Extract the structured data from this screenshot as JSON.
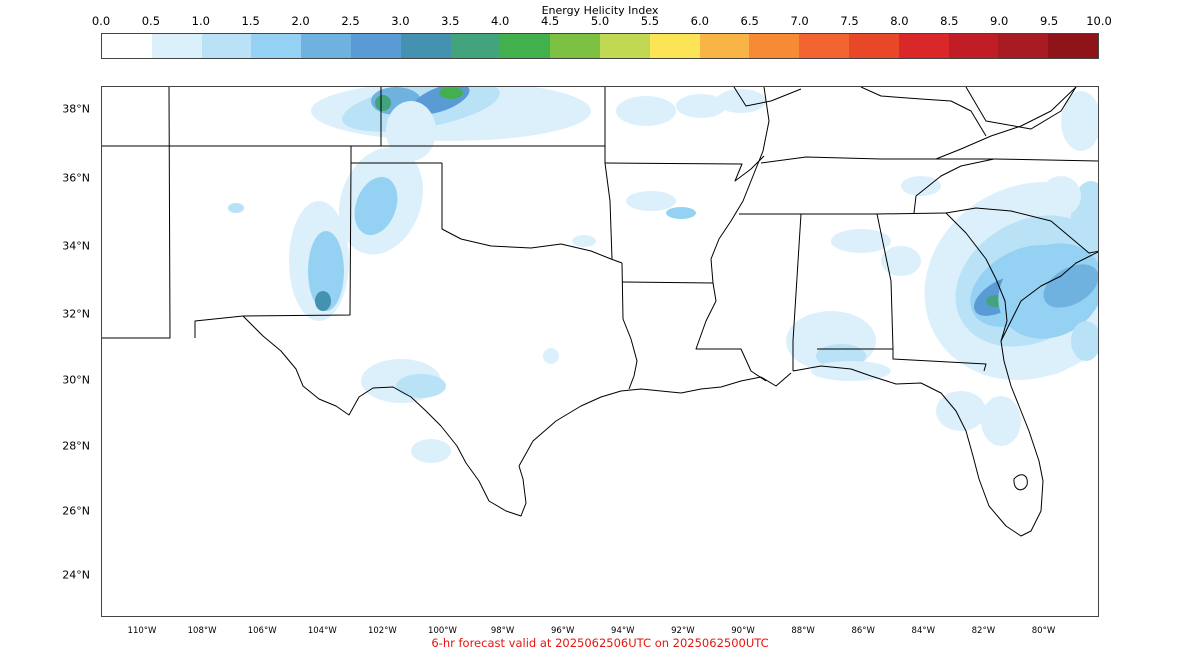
{
  "colorbar": {
    "title": "Energy Helicity Index",
    "ticks": [
      "0.0",
      "0.5",
      "1.0",
      "1.5",
      "2.0",
      "2.5",
      "3.0",
      "3.5",
      "4.0",
      "4.5",
      "5.0",
      "5.5",
      "6.0",
      "6.5",
      "7.0",
      "7.5",
      "8.0",
      "8.5",
      "9.0",
      "9.5",
      "10.0"
    ],
    "range": [
      0,
      10
    ],
    "step": 0.5,
    "colors": [
      "#ffffff",
      "#dcf0fc",
      "#b9e2f7",
      "#94d1f2",
      "#6fb2e0",
      "#5a9bd5",
      "#4592b0",
      "#42a37d",
      "#43b04e",
      "#7dc142",
      "#c0d852",
      "#fbe556",
      "#f9b446",
      "#f68a35",
      "#f26430",
      "#e84828",
      "#da272a",
      "#c11d26",
      "#a91b22",
      "#8e1419"
    ]
  },
  "map": {
    "region": "Southern United States",
    "lat_labels": [
      "38°N",
      "36°N",
      "34°N",
      "32°N",
      "30°N",
      "28°N",
      "26°N",
      "24°N"
    ],
    "lon_labels": [
      "110°W",
      "108°W",
      "106°W",
      "104°W",
      "102°W",
      "100°W",
      "98°W",
      "96°W",
      "94°W",
      "92°W",
      "90°W",
      "88°W",
      "86°W",
      "84°W",
      "82°W",
      "80°W"
    ],
    "lon_range": [
      -111.3,
      -78.2
    ],
    "lat_range": [
      22.7,
      38.7
    ]
  },
  "footer": "6-hr forecast valid at 2025062506UTC on 2025062500UTC"
}
